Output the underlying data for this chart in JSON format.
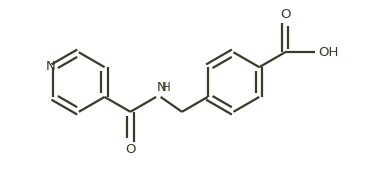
{
  "background": "#ffffff",
  "line_color": "#3a3a2a",
  "line_width": 1.6,
  "text_color": "#3a3a2a",
  "font_size": 9.5,
  "figsize": [
    3.68,
    1.77
  ],
  "dpi": 100,
  "xlim": [
    0,
    368
  ],
  "ylim": [
    0,
    177
  ]
}
